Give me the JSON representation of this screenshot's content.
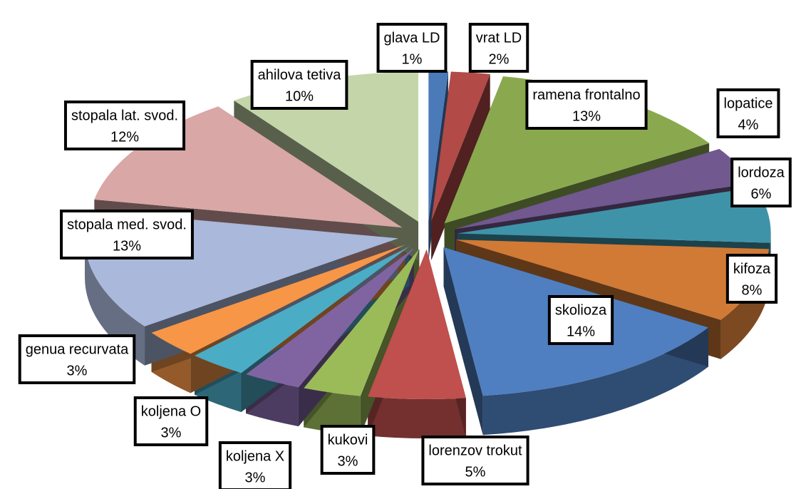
{
  "chart_data": {
    "type": "pie",
    "categories": [
      "glava LD",
      "vrat LD",
      "ramena frontalno",
      "lopatice",
      "lordoza",
      "kifoza",
      "skolioza",
      "lorenzov trokut",
      "kukovi",
      "koljena X",
      "koljena O",
      "genua recurvata",
      "stopala med. svod.",
      "stopala lat. svod.",
      "ahilova tetiva"
    ],
    "values": [
      1,
      2,
      13,
      4,
      6,
      8,
      14,
      5,
      3,
      3,
      3,
      3,
      13,
      12,
      10
    ],
    "value_labels": [
      "1%",
      "2%",
      "13%",
      "4%",
      "6%",
      "8%",
      "14%",
      "5%",
      "3%",
      "3%",
      "3%",
      "3%",
      "13%",
      "12%",
      "10%"
    ],
    "colors": [
      "#4a7ab8",
      "#b24a47",
      "#8aa94f",
      "#71588f",
      "#3f93a8",
      "#d07a36",
      "#4f7fc0",
      "#c0504d",
      "#9bbb59",
      "#8064a2",
      "#4bacc6",
      "#f79646",
      "#a9b8db",
      "#d9a7a6",
      "#c4d6a9"
    ]
  }
}
